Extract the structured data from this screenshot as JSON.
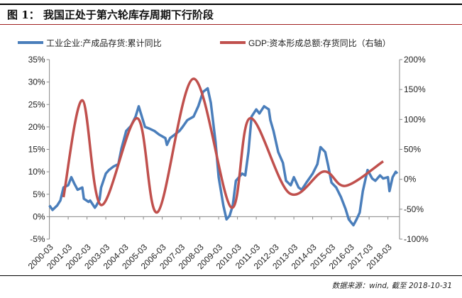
{
  "title": "图 1：  我国正处于第六轮库存周期下行阶段",
  "source": "数据来源：wind, 截至 2018-10-31",
  "chart_data": {
    "type": "line",
    "title": "",
    "legend_position": "top",
    "grid": false,
    "xlabel": "",
    "ylabel": "",
    "x_tick_labels": [
      "2000-03",
      "2001-03",
      "2002-03",
      "2003-03",
      "2004-03",
      "2005-03",
      "2006-03",
      "2007-03",
      "2008-03",
      "2009-03",
      "2010-03",
      "2011-03",
      "2012-03",
      "2013-03",
      "2014-03",
      "2015-03",
      "2016-03",
      "2017-03",
      "2018-03"
    ],
    "y_left": {
      "range": [
        -5,
        35
      ],
      "unit": "%",
      "ticks": [
        "-5%",
        "0%",
        "5%",
        "10%",
        "15%",
        "20%",
        "25%",
        "30%",
        "35%"
      ]
    },
    "y_right": {
      "range": [
        -100,
        200
      ],
      "unit": "%",
      "ticks": [
        "-100%",
        "-50%",
        "0%",
        "50%",
        "100%",
        "150%",
        "200%"
      ]
    },
    "series": [
      {
        "name": "工业企业:产成品存货:累计同比",
        "axis": "left",
        "color": "#4a7ebb",
        "points": [
          [
            "2000-03",
            2.5
          ],
          [
            "2000-05",
            1.5
          ],
          [
            "2000-08",
            2.5
          ],
          [
            "2000-10",
            3.6
          ],
          [
            "2000-12",
            6.5
          ],
          [
            "2001-03",
            7
          ],
          [
            "2001-05",
            8.8
          ],
          [
            "2001-07",
            7.3
          ],
          [
            "2001-09",
            6
          ],
          [
            "2001-12",
            6.5
          ],
          [
            "2002-01",
            4
          ],
          [
            "2002-04",
            3.3
          ],
          [
            "2002-05",
            3.6
          ],
          [
            "2002-08",
            2
          ],
          [
            "2002-09",
            2.5
          ],
          [
            "2002-11",
            3.8
          ],
          [
            "2002-12",
            6.5
          ],
          [
            "2003-03",
            9.6
          ],
          [
            "2003-05",
            10.4
          ],
          [
            "2003-08",
            11.2
          ],
          [
            "2003-11",
            11.7
          ],
          [
            "2004-01",
            15.2
          ],
          [
            "2004-04",
            19.1
          ],
          [
            "2004-07",
            20.2
          ],
          [
            "2004-10",
            22.3
          ],
          [
            "2004-12",
            24.6
          ],
          [
            "2005-02",
            22.3
          ],
          [
            "2005-04",
            20
          ],
          [
            "2005-07",
            19.6
          ],
          [
            "2005-10",
            19.1
          ],
          [
            "2006-01",
            18.3
          ],
          [
            "2006-05",
            17.5
          ],
          [
            "2006-06",
            16
          ],
          [
            "2006-08",
            17.5
          ],
          [
            "2006-11",
            18.3
          ],
          [
            "2007-02",
            19.1
          ],
          [
            "2007-04",
            20
          ],
          [
            "2007-07",
            21.5
          ],
          [
            "2007-11",
            22.3
          ],
          [
            "2008-02",
            24.6
          ],
          [
            "2008-05",
            27.8
          ],
          [
            "2008-08",
            28.6
          ],
          [
            "2008-10",
            25.4
          ],
          [
            "2009-01",
            16.7
          ],
          [
            "2009-03",
            8.8
          ],
          [
            "2009-06",
            2.5
          ],
          [
            "2009-08",
            -0.6
          ],
          [
            "2009-10",
            0.2
          ],
          [
            "2009-12",
            2.5
          ],
          [
            "2010-02",
            8
          ],
          [
            "2010-06",
            9.6
          ],
          [
            "2010-08",
            9.2
          ],
          [
            "2010-10",
            14.4
          ],
          [
            "2010-12",
            22.3
          ],
          [
            "2011-03",
            23.9
          ],
          [
            "2011-05",
            23
          ],
          [
            "2011-08",
            24.6
          ],
          [
            "2011-11",
            23.9
          ],
          [
            "2011-12",
            21.5
          ],
          [
            "2012-02",
            19.1
          ],
          [
            "2012-05",
            14.4
          ],
          [
            "2012-08",
            12
          ],
          [
            "2012-10",
            8
          ],
          [
            "2013-01",
            7
          ],
          [
            "2013-03",
            8.8
          ],
          [
            "2013-06",
            6.5
          ],
          [
            "2013-08",
            6
          ],
          [
            "2013-11",
            7.6
          ],
          [
            "2014-03",
            9.6
          ],
          [
            "2014-06",
            11.7
          ],
          [
            "2014-08",
            15.5
          ],
          [
            "2014-11",
            14.4
          ],
          [
            "2015-01",
            11.2
          ],
          [
            "2015-03",
            7.6
          ],
          [
            "2015-06",
            6.5
          ],
          [
            "2015-09",
            4.4
          ],
          [
            "2015-12",
            1.7
          ],
          [
            "2016-02",
            -0.6
          ],
          [
            "2016-05",
            -1.9
          ],
          [
            "2016-07",
            -0.6
          ],
          [
            "2016-09",
            0.9
          ],
          [
            "2016-11",
            5.7
          ],
          [
            "2017-02",
            10.4
          ],
          [
            "2017-05",
            8.5
          ],
          [
            "2017-07",
            8
          ],
          [
            "2017-10",
            9.2
          ],
          [
            "2017-12",
            8.5
          ],
          [
            "2018-03",
            8.8
          ],
          [
            "2018-04",
            5.7
          ],
          [
            "2018-06",
            8.8
          ],
          [
            "2018-08",
            10
          ],
          [
            "2018-09",
            9.6
          ]
        ]
      },
      {
        "name": "GDP:资本形成总额:存货同比（右轴）",
        "axis": "right",
        "color": "#c0504d",
        "points": [
          [
            "2000-12",
            -30
          ],
          [
            "2001-12",
            132
          ],
          [
            "2002-12",
            -43
          ],
          [
            "2004-11",
            102
          ],
          [
            "2005-12",
            -55
          ],
          [
            "2007-11",
            168
          ],
          [
            "2009-11",
            -47
          ],
          [
            "2010-11",
            102
          ],
          [
            "2012-12",
            -23
          ],
          [
            "2014-10",
            13
          ],
          [
            "2015-12",
            -11
          ],
          [
            "2017-12",
            30
          ]
        ]
      }
    ]
  }
}
